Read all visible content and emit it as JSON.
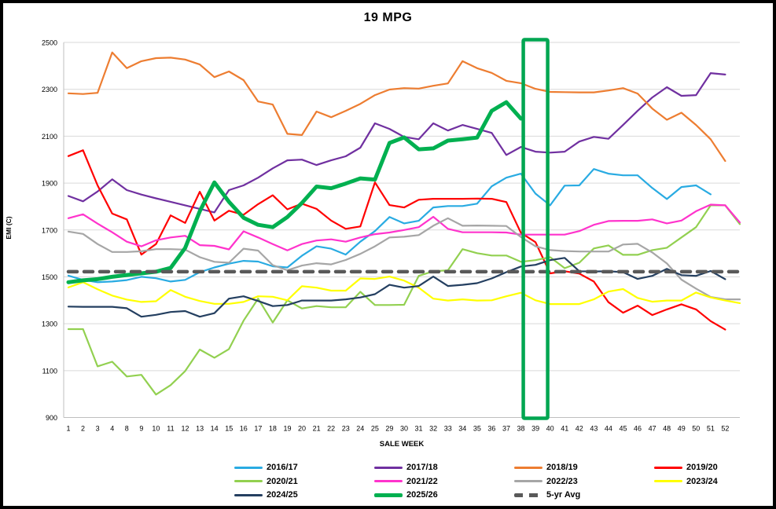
{
  "chart_data": {
    "type": "line",
    "title": "19 MPG",
    "xlabel": "SALE WEEK",
    "ylabel": "EMI (C)",
    "ylim": [
      900,
      2500
    ],
    "yticks": [
      900,
      1100,
      1300,
      1500,
      1700,
      1900,
      2100,
      2300,
      2500
    ],
    "grid": "horizontal-only",
    "legend_position": "bottom",
    "x_labels": [
      "1",
      "2",
      "3",
      "4",
      "8",
      "9",
      "10",
      "11",
      "12",
      "13",
      "14",
      "15",
      "16",
      "17",
      "18",
      "19",
      "20",
      "21",
      "22",
      "23",
      "24",
      "25",
      "29",
      "30",
      "31",
      "32",
      "33",
      "34",
      "35",
      "36",
      "37",
      "38",
      "39",
      "40",
      "41",
      "42",
      "43",
      "44",
      "45",
      "46",
      "47",
      "48",
      "49",
      "50",
      "51",
      "52",
      ""
    ],
    "annotation": {
      "label": "highlight-week-39",
      "week": "39",
      "color": "#00A651"
    },
    "series": [
      {
        "name": "2016/17",
        "color": "#29ABE2",
        "width": 2.2,
        "style": "solid",
        "values": [
          1505,
          1487,
          1477,
          1480,
          1486,
          1500,
          1494,
          1480,
          1487,
          1520,
          1540,
          1556,
          1568,
          1565,
          1545,
          1540,
          1590,
          1630,
          1620,
          1595,
          1650,
          1695,
          1755,
          1728,
          1739,
          1796,
          1802,
          1802,
          1812,
          1886,
          1923,
          1940,
          1855,
          1805,
          1889,
          1890,
          1960,
          1940,
          1933,
          1933,
          1879,
          1832,
          1883,
          1890,
          1852,
          null,
          null
        ]
      },
      {
        "name": "2017/18",
        "color": "#7030A0",
        "width": 2.2,
        "style": "solid",
        "values": [
          1845,
          1822,
          1864,
          1916,
          1870,
          1851,
          1835,
          1820,
          1805,
          1790,
          1775,
          1870,
          1890,
          1923,
          1963,
          1997,
          2000,
          1977,
          1997,
          2014,
          2051,
          2155,
          2131,
          2097,
          2087,
          2155,
          2124,
          2148,
          2131,
          2114,
          2020,
          2054,
          2034,
          2030,
          2034,
          2077,
          2097,
          2089,
          2148,
          2208,
          2265,
          2309,
          2272,
          2275,
          2369,
          2363,
          null
        ]
      },
      {
        "name": "2018/19",
        "color": "#ED7D31",
        "width": 2.2,
        "style": "solid",
        "values": [
          2283,
          2280,
          2285,
          2457,
          2390,
          2420,
          2433,
          2435,
          2427,
          2406,
          2352,
          2376,
          2339,
          2248,
          2235,
          2110,
          2105,
          2205,
          2181,
          2208,
          2238,
          2275,
          2299,
          2305,
          2303,
          2315,
          2325,
          2420,
          2390,
          2370,
          2336,
          2326,
          2302,
          2289,
          2288,
          2287,
          2287,
          2295,
          2305,
          2282,
          2218,
          2170,
          2200,
          2148,
          2087,
          1994,
          null
        ]
      },
      {
        "name": "2019/20",
        "color": "#FF0000",
        "width": 2.2,
        "style": "solid",
        "values": [
          2015,
          2040,
          1890,
          1770,
          1745,
          1595,
          1640,
          1762,
          1730,
          1863,
          1740,
          1782,
          1765,
          1810,
          1848,
          1788,
          1812,
          1790,
          1740,
          1705,
          1715,
          1903,
          1806,
          1796,
          1829,
          1833,
          1833,
          1833,
          1834,
          1833,
          1819,
          1688,
          1648,
          1515,
          1524,
          1514,
          1480,
          1392,
          1347,
          1377,
          1337,
          1361,
          1383,
          1361,
          1311,
          1275,
          null
        ]
      },
      {
        "name": "2020/21",
        "color": "#92D050",
        "width": 2.2,
        "style": "solid",
        "values": [
          1277,
          1277,
          1118,
          1138,
          1075,
          1082,
          998,
          1038,
          1098,
          1190,
          1155,
          1192,
          1313,
          1407,
          1305,
          1400,
          1365,
          1375,
          1370,
          1370,
          1436,
          1380,
          1380,
          1381,
          1504,
          1524,
          1528,
          1618,
          1601,
          1591,
          1591,
          1564,
          1571,
          1584,
          1537,
          1560,
          1621,
          1634,
          1594,
          1594,
          1614,
          1624,
          1668,
          1712,
          1805,
          1805,
          1725
        ]
      },
      {
        "name": "2021/22",
        "color": "#FF33CC",
        "width": 2.2,
        "style": "solid",
        "values": [
          1750,
          1767,
          1727,
          1690,
          1650,
          1630,
          1656,
          1668,
          1675,
          1635,
          1632,
          1617,
          1694,
          1668,
          1640,
          1613,
          1640,
          1655,
          1660,
          1650,
          1668,
          1682,
          1689,
          1700,
          1712,
          1756,
          1705,
          1690,
          1690,
          1690,
          1689,
          1680,
          1680,
          1680,
          1680,
          1695,
          1722,
          1738,
          1739,
          1739,
          1745,
          1728,
          1740,
          1780,
          1808,
          1805,
          1732
        ]
      },
      {
        "name": "2022/23",
        "color": "#A6A6A6",
        "width": 2.2,
        "style": "solid",
        "values": [
          1693,
          1683,
          1640,
          1606,
          1606,
          1609,
          1618,
          1618,
          1616,
          1584,
          1564,
          1560,
          1620,
          1612,
          1550,
          1528,
          1548,
          1558,
          1553,
          1572,
          1598,
          1630,
          1668,
          1671,
          1678,
          1718,
          1750,
          1718,
          1719,
          1718,
          1717,
          1670,
          1630,
          1614,
          1610,
          1608,
          1608,
          1608,
          1638,
          1641,
          1604,
          1557,
          1488,
          1450,
          1414,
          1404,
          1404
        ]
      },
      {
        "name": "2023/24",
        "color": "#FFFF00",
        "width": 2.2,
        "style": "solid",
        "values": [
          1455,
          1477,
          1447,
          1420,
          1403,
          1393,
          1396,
          1444,
          1415,
          1397,
          1385,
          1385,
          1393,
          1417,
          1415,
          1400,
          1460,
          1454,
          1441,
          1441,
          1493,
          1491,
          1501,
          1484,
          1454,
          1407,
          1399,
          1404,
          1399,
          1400,
          1417,
          1432,
          1400,
          1384,
          1384,
          1384,
          1404,
          1437,
          1448,
          1410,
          1394,
          1399,
          1399,
          1433,
          1412,
          1399,
          1388
        ]
      },
      {
        "name": "2024/25",
        "color": "#243F60",
        "width": 2.2,
        "style": "solid",
        "values": [
          1373,
          1372,
          1372,
          1372,
          1366,
          1330,
          1338,
          1350,
          1354,
          1330,
          1345,
          1407,
          1417,
          1397,
          1375,
          1380,
          1399,
          1399,
          1399,
          1404,
          1412,
          1426,
          1466,
          1454,
          1461,
          1501,
          1461,
          1466,
          1473,
          1493,
          1520,
          1544,
          1551,
          1571,
          1581,
          1524,
          1523,
          1524,
          1520,
          1491,
          1504,
          1534,
          1507,
          1504,
          1525,
          1490,
          null
        ]
      },
      {
        "name": "2025/26",
        "color": "#00B050",
        "width": 5,
        "style": "solid",
        "values": [
          1477,
          1485,
          1490,
          1500,
          1508,
          1515,
          1522,
          1538,
          1623,
          1780,
          1903,
          1820,
          1752,
          1722,
          1712,
          1755,
          1815,
          1885,
          1878,
          1898,
          1920,
          1915,
          2071,
          2095,
          2044,
          2048,
          2081,
          2087,
          2094,
          2208,
          2245,
          2175,
          null,
          null,
          null,
          null,
          null,
          null,
          null,
          null,
          null,
          null,
          null,
          null,
          null,
          null,
          null
        ]
      },
      {
        "name": "5-yr Avg",
        "color": "#595959",
        "width": 4.5,
        "style": "dashed",
        "values": [
          1522,
          1522,
          1522,
          1522,
          1522,
          1522,
          1522,
          1522,
          1522,
          1522,
          1522,
          1522,
          1522,
          1522,
          1522,
          1522,
          1522,
          1522,
          1522,
          1522,
          1522,
          1522,
          1522,
          1522,
          1522,
          1522,
          1522,
          1522,
          1522,
          1522,
          1522,
          1522,
          1522,
          1522,
          1522,
          1522,
          1522,
          1522,
          1522,
          1522,
          1522,
          1522,
          1522,
          1522,
          1522,
          1522,
          1522
        ]
      }
    ]
  },
  "style": {
    "gridline_color": "#D9D9D9",
    "axis_color": "#BFBFBF",
    "background": "#FFFFFF",
    "border_color": "#000000"
  },
  "legend_rows": [
    [
      0,
      1,
      2,
      3
    ],
    [
      4,
      5,
      6,
      7
    ],
    [
      8,
      9,
      10
    ]
  ]
}
